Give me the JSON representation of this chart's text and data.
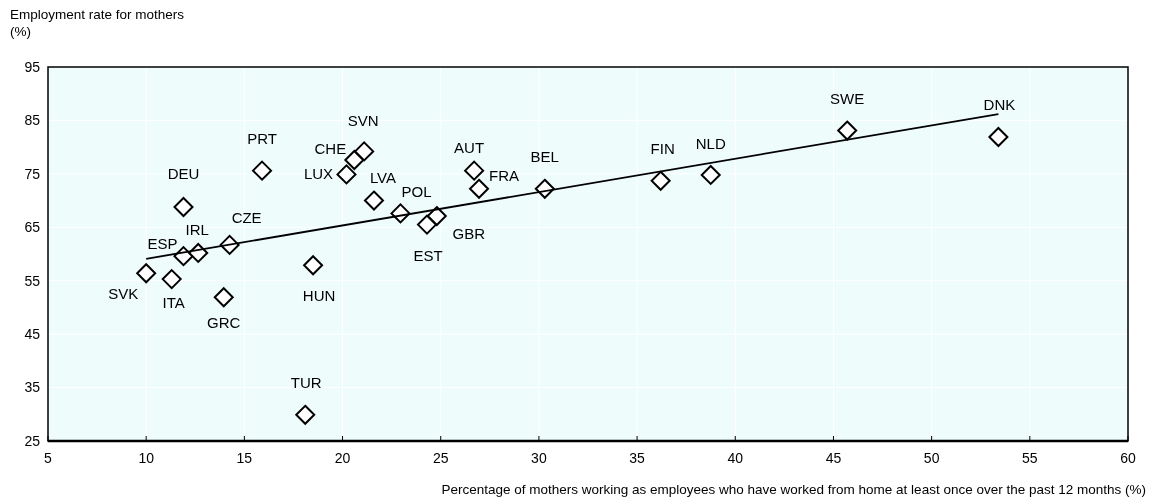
{
  "chart_data": {
    "type": "scatter",
    "xlabel": "Percentage of mothers working as employees who have worked from home at least once over  the past 12 months (%)",
    "ylabel": "Employment rate for mothers (%)",
    "xlim": [
      5,
      60
    ],
    "xticks": [
      5,
      10,
      15,
      20,
      25,
      30,
      35,
      40,
      45,
      50,
      55,
      60
    ],
    "ylim": [
      25,
      95
    ],
    "yticks": [
      25,
      35,
      45,
      55,
      65,
      75,
      85,
      95
    ],
    "grid": true,
    "marker": "diamond",
    "series": [
      {
        "color": "#000000",
        "x": [
          10.0,
          11.3,
          11.9,
          12.65,
          11.9,
          14.25,
          13.95,
          15.9,
          18.5,
          18.1,
          20.2,
          20.6,
          21.1,
          21.6,
          22.95,
          24.3,
          24.8,
          26.7,
          26.95,
          30.3,
          36.2,
          38.75,
          45.7,
          53.4
        ],
        "values": [
          56.4,
          55.3,
          59.6,
          60.2,
          68.8,
          61.7,
          51.9,
          75.6,
          57.9,
          29.9,
          74.9,
          77.6,
          79.2,
          70.0,
          67.6,
          65.5,
          67.1,
          75.6,
          72.2,
          72.2,
          73.7,
          74.8,
          83.1,
          81.9
        ]
      },
      {
        "type": "line",
        "color": "#000000",
        "marker": "none",
        "x": [
          10.0,
          53.4
        ],
        "values": [
          59.1,
          86.2
        ]
      }
    ],
    "annotations": [
      {
        "text": "SVK",
        "x": 10.0,
        "y": 56.4
      },
      {
        "text": "ITA",
        "x": 11.3,
        "y": 55.3
      },
      {
        "text": "ESP",
        "x": 11.9,
        "y": 59.6
      },
      {
        "text": "IRL",
        "x": 12.65,
        "y": 60.2
      },
      {
        "text": "DEU",
        "x": 11.9,
        "y": 68.8
      },
      {
        "text": "CZE",
        "x": 14.25,
        "y": 61.7
      },
      {
        "text": "GRC",
        "x": 13.95,
        "y": 51.9
      },
      {
        "text": "PRT",
        "x": 15.9,
        "y": 75.6
      },
      {
        "text": "HUN",
        "x": 18.5,
        "y": 57.9
      },
      {
        "text": "TUR",
        "x": 18.1,
        "y": 29.9
      },
      {
        "text": "LUX",
        "x": 20.2,
        "y": 74.9
      },
      {
        "text": "CHE",
        "x": 20.6,
        "y": 77.6
      },
      {
        "text": "SVN",
        "x": 21.1,
        "y": 79.2
      },
      {
        "text": "LVA",
        "x": 21.6,
        "y": 70.0
      },
      {
        "text": "POL",
        "x": 22.95,
        "y": 67.6
      },
      {
        "text": "EST",
        "x": 24.3,
        "y": 65.5
      },
      {
        "text": "GBR",
        "x": 24.8,
        "y": 67.1
      },
      {
        "text": "AUT",
        "x": 26.7,
        "y": 75.6
      },
      {
        "text": "FRA",
        "x": 26.95,
        "y": 72.2
      },
      {
        "text": "BEL",
        "x": 30.3,
        "y": 72.2
      },
      {
        "text": "FIN",
        "x": 36.2,
        "y": 73.7
      },
      {
        "text": "NLD",
        "x": 38.75,
        "y": 74.8
      },
      {
        "text": "SWE",
        "x": 45.7,
        "y": 83.1
      },
      {
        "text": "DNK",
        "x": 53.4,
        "y": 81.9
      }
    ]
  }
}
